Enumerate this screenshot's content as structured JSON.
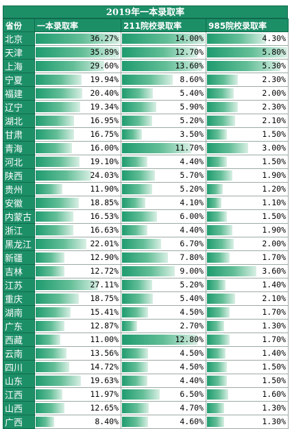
{
  "table": {
    "title": "2019年一本录取率",
    "headers": [
      "省份",
      "一本录取率",
      "211院校录取率",
      "985院校录取率"
    ],
    "max": {
      "c1": 36.27,
      "c2": 14.0,
      "c3": 5.8
    },
    "rows": [
      {
        "province": "北京",
        "c1": "36.27%",
        "c2": "14.00%",
        "c3": "4.30%"
      },
      {
        "province": "天津",
        "c1": "35.89%",
        "c2": "12.70%",
        "c3": "5.80%"
      },
      {
        "province": "上海",
        "c1": "29.60%",
        "c2": "13.60%",
        "c3": "5.30%"
      },
      {
        "province": "宁夏",
        "c1": "19.94%",
        "c2": "8.60%",
        "c3": "2.30%"
      },
      {
        "province": "福建",
        "c1": "20.40%",
        "c2": "5.40%",
        "c3": "2.00%"
      },
      {
        "province": "辽宁",
        "c1": "19.34%",
        "c2": "5.90%",
        "c3": "2.30%"
      },
      {
        "province": "湖北",
        "c1": "16.95%",
        "c2": "5.20%",
        "c3": "2.10%"
      },
      {
        "province": "甘肃",
        "c1": "16.75%",
        "c2": "3.50%",
        "c3": "1.50%"
      },
      {
        "province": "青海",
        "c1": "16.00%",
        "c2": "11.70%",
        "c3": "3.00%"
      },
      {
        "province": "河北",
        "c1": "19.10%",
        "c2": "4.40%",
        "c3": "1.50%"
      },
      {
        "province": "陕西",
        "c1": "24.03%",
        "c2": "5.70%",
        "c3": "1.90%"
      },
      {
        "province": "贵州",
        "c1": "11.90%",
        "c2": "5.20%",
        "c3": "1.20%"
      },
      {
        "province": "安徽",
        "c1": "18.85%",
        "c2": "4.10%",
        "c3": "1.10%"
      },
      {
        "province": "内蒙古",
        "c1": "16.53%",
        "c2": "6.00%",
        "c3": "1.50%"
      },
      {
        "province": "浙江",
        "c1": "16.63%",
        "c2": "4.40%",
        "c3": "1.90%"
      },
      {
        "province": "黑龙江",
        "c1": "22.01%",
        "c2": "6.70%",
        "c3": "2.00%"
      },
      {
        "province": "新疆",
        "c1": "12.90%",
        "c2": "7.80%",
        "c3": "1.70%"
      },
      {
        "province": "吉林",
        "c1": "12.72%",
        "c2": "9.00%",
        "c3": "3.60%"
      },
      {
        "province": "江苏",
        "c1": "27.11%",
        "c2": "5.20%",
        "c3": "1.40%"
      },
      {
        "province": "重庆",
        "c1": "18.75%",
        "c2": "5.40%",
        "c3": "2.10%"
      },
      {
        "province": "湖南",
        "c1": "15.41%",
        "c2": "4.50%",
        "c3": "1.70%"
      },
      {
        "province": "广东",
        "c1": "12.87%",
        "c2": "2.70%",
        "c3": "1.30%"
      },
      {
        "province": "西藏",
        "c1": "11.00%",
        "c2": "12.80%",
        "c3": "1.70%"
      },
      {
        "province": "云南",
        "c1": "13.56%",
        "c2": "4.50%",
        "c3": "1.40%"
      },
      {
        "province": "四川",
        "c1": "14.72%",
        "c2": "4.50%",
        "c3": "1.50%"
      },
      {
        "province": "山东",
        "c1": "19.63%",
        "c2": "4.40%",
        "c3": "1.50%"
      },
      {
        "province": "江西",
        "c1": "11.97%",
        "c2": "6.50%",
        "c3": "1.60%"
      },
      {
        "province": "山西",
        "c1": "12.65%",
        "c2": "4.70%",
        "c3": "1.30%"
      },
      {
        "province": "广西",
        "c1": "8.40%",
        "c2": "4.60%",
        "c3": "1.30%"
      }
    ]
  }
}
